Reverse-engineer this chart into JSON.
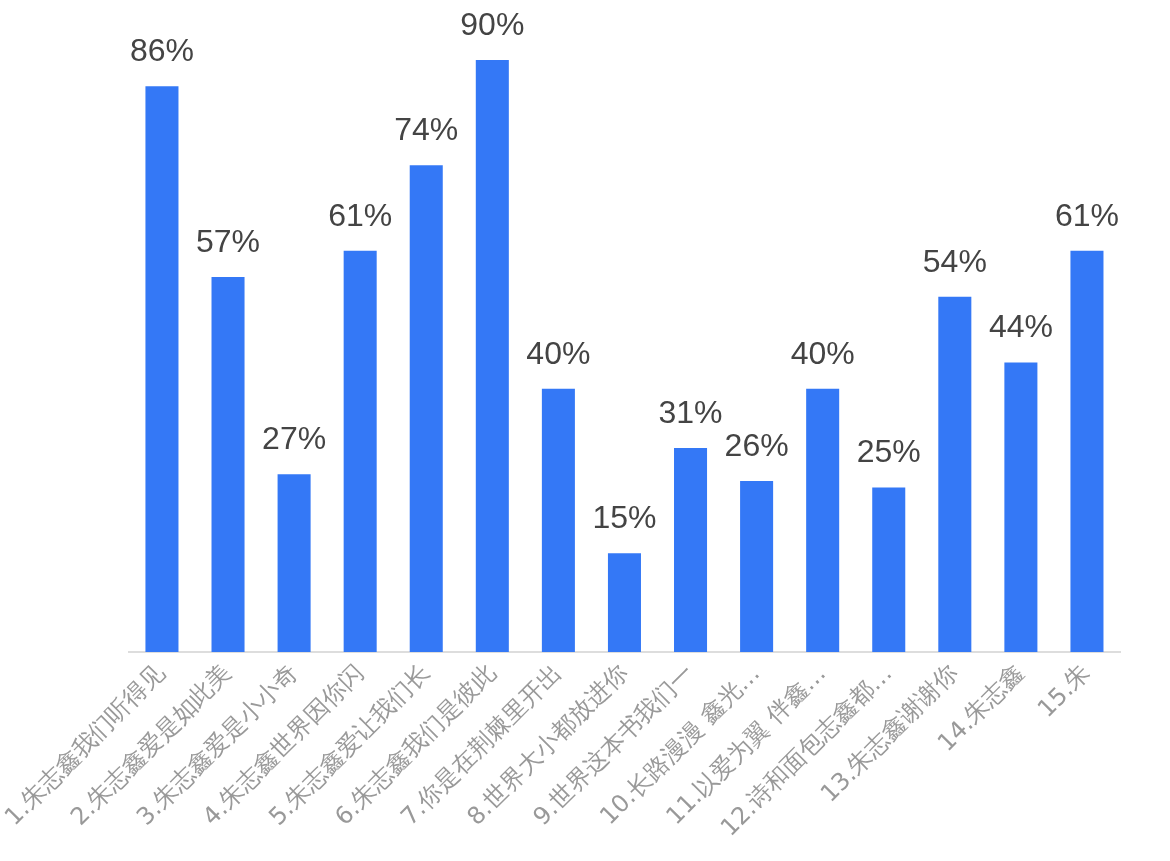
{
  "chart_data": {
    "type": "bar",
    "categories": [
      "1.朱志鑫我们听得见",
      "2.朱志鑫爱是如此美",
      "3.朱志鑫爱是小小奇",
      "4.朱志鑫世界因你闪",
      "5.朱志鑫爱让我们长",
      "6.朱志鑫我们是彼此",
      "7.你是在荆棘里开出",
      "8.世界大小都放进你",
      "9.世界这本书我们一",
      "10.长路漫漫 鑫光…",
      "11.以爱为翼 伴鑫…",
      "12.诗和面包志鑫都…",
      "13.朱志鑫谢谢你",
      "14.朱志鑫",
      "15.朱"
    ],
    "values": [
      86,
      57,
      27,
      61,
      74,
      90,
      40,
      15,
      31,
      26,
      40,
      25,
      54,
      44,
      61
    ],
    "value_labels": [
      "86%",
      "57%",
      "27%",
      "61%",
      "74%",
      "90%",
      "40%",
      "15%",
      "31%",
      "26%",
      "40%",
      "25%",
      "54%",
      "44%",
      "61%"
    ],
    "color": "#3478f6",
    "tick_labels": "x",
    "grid": false,
    "legend": false
  }
}
